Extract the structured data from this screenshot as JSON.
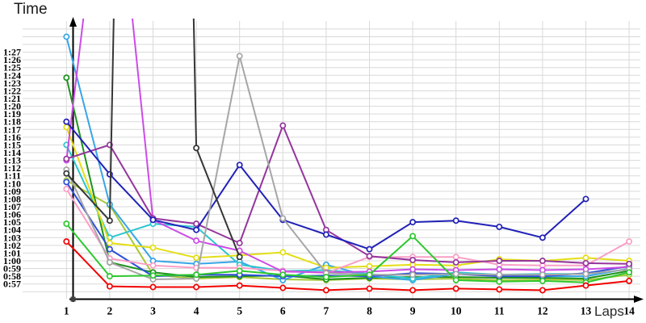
{
  "labels": {
    "y_axis_title": "Time",
    "x_axis_title": "Laps"
  },
  "chart_data": {
    "type": "line",
    "title": "",
    "xlabel": "Laps",
    "ylabel": "Time",
    "legend": "none",
    "grid": true,
    "x": [
      1,
      2,
      3,
      4,
      5,
      6,
      7,
      8,
      9,
      10,
      11,
      12,
      13,
      14
    ],
    "x_tick_labels": [
      "1",
      "2",
      "3",
      "4",
      "5",
      "6",
      "7",
      "8",
      "9",
      "10",
      "11",
      "12",
      "13",
      "14"
    ],
    "y_tick_labels": [
      "1:27",
      "1:26",
      "1:25",
      "1:24",
      "1:23",
      "1:22",
      "1:21",
      "1:20",
      "1:19",
      "1:18",
      "1:17",
      "1:16",
      "1:15",
      "1:14",
      "1:13",
      "1:12",
      "1:11",
      "1:10",
      "1:09",
      "1:08",
      "1:07",
      "1:06",
      "1:05",
      "1:04",
      "1:03",
      "1:02",
      "1:01",
      "1:00",
      "0:59",
      "0:58",
      "0:57"
    ],
    "y_axis": {
      "unit": "m:ss",
      "labeled_min_seconds": 57,
      "labeled_max_seconds": 87,
      "gridline_step_seconds": 1,
      "values_are_lap_time_seconds": true
    },
    "series": [
      {
        "name": "yellow-green",
        "color": "#a6c838",
        "values": [
          70.4,
          67.2,
          58.2,
          57.7,
          57.9,
          57.6,
          57.5,
          57.7,
          57.6,
          57.7,
          57.5,
          57.6,
          57.5,
          58.2
        ]
      },
      {
        "name": "dark-green",
        "color": "#1d921d",
        "values": [
          83.7,
          59.8,
          58.5,
          57.9,
          58.0,
          58.1,
          57.6,
          57.8,
          57.9,
          57.9,
          57.8,
          57.8,
          57.7,
          58.7
        ]
      },
      {
        "name": "sky-blue",
        "color": "#38a5e8",
        "values": [
          89.0,
          67.3,
          60.0,
          59.6,
          59.9,
          57.5,
          59.5,
          58.0,
          57.5,
          58.3,
          58.1,
          58.0,
          58.0,
          59.0
        ]
      },
      {
        "name": "cyan",
        "color": "#2cc5cf",
        "values": [
          75.0,
          63.0,
          64.8,
          64.4,
          59.5,
          58.7,
          58.8,
          58.3,
          57.7,
          58.5,
          58.2,
          58.3,
          58.3,
          58.9
        ]
      },
      {
        "name": "royal-blue",
        "color": "#2e4fd8",
        "values": [
          70.2,
          61.5,
          58.0,
          58.2,
          58.2,
          58.0,
          58.1,
          58.0,
          58.4,
          58.3,
          58.0,
          58.0,
          58.4,
          59.3
        ]
      },
      {
        "name": "yellow",
        "color": "#e3de16",
        "values": [
          77.3,
          62.3,
          61.7,
          60.4,
          60.7,
          61.1,
          59.1,
          59.3,
          59.5,
          59.4,
          60.2,
          60.0,
          60.4,
          60.0
        ]
      },
      {
        "name": "pink",
        "color": "#fa9ec6",
        "values": [
          69.3,
          60.3,
          59.4,
          59.1,
          59.1,
          58.7,
          58.4,
          60.5,
          60.5,
          60.5,
          59.5,
          59.4,
          59.4,
          62.5
        ]
      },
      {
        "name": "magenta",
        "color": "#cb4ce6",
        "values": [
          73.0,
          null,
          65.3,
          62.6,
          61.3,
          58.6,
          58.5,
          58.6,
          58.9,
          58.8,
          58.9,
          58.8,
          58.9,
          59.2
        ],
        "offscale_render_seconds": {
          "2": 120
        },
        "note": "lap 2 spikes above the visible scale"
      },
      {
        "name": "purple",
        "color": "#95359c",
        "values": [
          73.2,
          75.0,
          65.5,
          64.8,
          62.3,
          77.5,
          64.0,
          60.6,
          60.1,
          59.8,
          60.0,
          60.0,
          59.7,
          59.6
        ]
      },
      {
        "name": "navy-blue",
        "color": "#2121b8",
        "values": [
          78.0,
          71.2,
          65.3,
          64.0,
          72.4,
          65.3,
          63.4,
          61.5,
          65.0,
          65.2,
          64.4,
          63.0,
          68.0,
          null
        ]
      },
      {
        "name": "gray",
        "color": "#a6a6a6",
        "values": [
          71.8,
          59.8,
          57.6,
          57.7,
          86.5,
          65.5,
          58.4,
          58.2,
          58.2,
          58.3,
          58.2,
          58.2,
          58.3,
          58.9
        ]
      },
      {
        "name": "black",
        "color": "#363636",
        "values": [
          71.3,
          65.2,
          null,
          74.6,
          60.5,
          null,
          null,
          null,
          null,
          null,
          null,
          null,
          null,
          null
        ],
        "offscale_render_seconds": {
          "3": 350
        },
        "note": "lap 3 spikes above the visible scale; series ends at lap 5"
      },
      {
        "name": "bright-green",
        "color": "#2ec82e",
        "values": [
          64.8,
          58.0,
          58.1,
          58.2,
          58.7,
          58.2,
          57.9,
          58.2,
          63.2,
          57.5,
          57.3,
          57.4,
          57.2,
          58.5
        ]
      },
      {
        "name": "red",
        "color": "#f20000",
        "values": [
          62.5,
          56.7,
          56.6,
          56.6,
          56.8,
          56.5,
          56.2,
          56.4,
          56.2,
          56.4,
          56.3,
          56.2,
          56.8,
          57.4
        ]
      }
    ]
  }
}
